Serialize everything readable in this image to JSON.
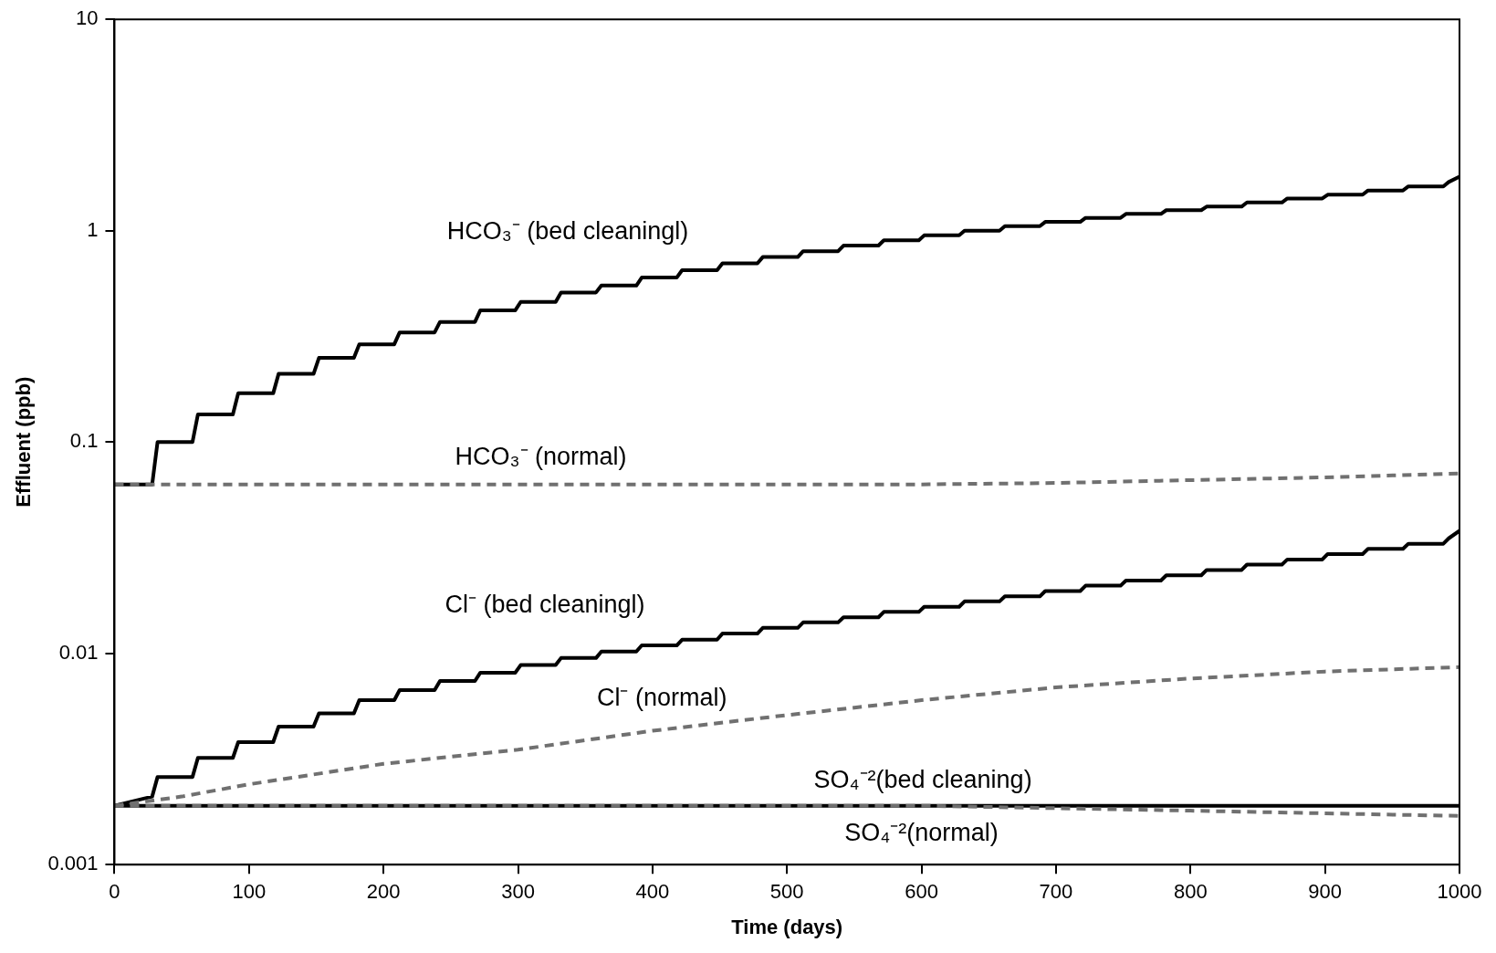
{
  "chart_data": {
    "type": "line",
    "xlabel": "Time (days)",
    "ylabel": "Effluent (ppb)",
    "log": true,
    "xlim": [
      0,
      1000
    ],
    "xticks": [
      0,
      100,
      200,
      300,
      400,
      500,
      600,
      700,
      800,
      900,
      1000
    ],
    "ylim": [
      0.001,
      10
    ],
    "yticks": [
      0.001,
      0.01,
      0.1,
      1,
      10
    ],
    "series": [
      {
        "name": "HCO₃⁻ (bed cleaningl)",
        "color": "#000000",
        "line_style": "solid",
        "x": [
          0,
          28,
          32,
          58,
          62,
          88,
          92,
          118,
          122,
          148,
          152,
          178,
          182,
          208,
          212,
          238,
          242,
          268,
          272,
          298,
          302,
          328,
          332,
          358,
          362,
          388,
          392,
          418,
          422,
          448,
          452,
          478,
          482,
          508,
          512,
          538,
          542,
          568,
          572,
          598,
          602,
          628,
          632,
          658,
          662,
          688,
          692,
          718,
          722,
          748,
          752,
          778,
          782,
          808,
          812,
          838,
          842,
          868,
          872,
          898,
          902,
          928,
          932,
          958,
          962,
          988,
          992,
          1000
        ],
        "values": [
          0.063,
          0.063,
          0.1,
          0.1,
          0.135,
          0.135,
          0.17,
          0.17,
          0.21,
          0.21,
          0.25,
          0.25,
          0.29,
          0.29,
          0.33,
          0.33,
          0.37,
          0.37,
          0.42,
          0.42,
          0.46,
          0.46,
          0.51,
          0.51,
          0.55,
          0.55,
          0.6,
          0.6,
          0.65,
          0.65,
          0.7,
          0.7,
          0.75,
          0.75,
          0.8,
          0.8,
          0.85,
          0.85,
          0.9,
          0.9,
          0.95,
          0.95,
          1,
          1,
          1.05,
          1.05,
          1.1,
          1.1,
          1.15,
          1.15,
          1.2,
          1.2,
          1.25,
          1.25,
          1.3,
          1.3,
          1.36,
          1.36,
          1.42,
          1.42,
          1.48,
          1.48,
          1.55,
          1.55,
          1.62,
          1.62,
          1.7,
          1.8
        ]
      },
      {
        "name": "HCO₃⁻ (normal)",
        "color": "#707070",
        "line_style": "dashed",
        "x": [
          0,
          100,
          200,
          300,
          400,
          500,
          600,
          700,
          800,
          900,
          1000
        ],
        "values": [
          0.063,
          0.063,
          0.063,
          0.063,
          0.063,
          0.063,
          0.063,
          0.064,
          0.066,
          0.068,
          0.071
        ]
      },
      {
        "name": "Cl⁻ (bed cleaningl)",
        "color": "#000000",
        "line_style": "solid",
        "x": [
          0,
          28,
          32,
          58,
          62,
          88,
          92,
          118,
          122,
          148,
          152,
          178,
          182,
          208,
          212,
          238,
          242,
          268,
          272,
          298,
          302,
          328,
          332,
          358,
          362,
          388,
          392,
          418,
          422,
          448,
          452,
          478,
          482,
          508,
          512,
          538,
          542,
          568,
          572,
          598,
          602,
          628,
          632,
          658,
          662,
          688,
          692,
          718,
          722,
          748,
          752,
          778,
          782,
          808,
          812,
          838,
          842,
          868,
          872,
          898,
          902,
          928,
          932,
          958,
          962,
          988,
          992,
          1000
        ],
        "values": [
          0.0019,
          0.0021,
          0.0026,
          0.0026,
          0.0032,
          0.0032,
          0.0038,
          0.0038,
          0.0045,
          0.0045,
          0.0052,
          0.0052,
          0.006,
          0.006,
          0.0067,
          0.0067,
          0.0074,
          0.0074,
          0.0081,
          0.0081,
          0.0088,
          0.0088,
          0.0095,
          0.0095,
          0.0102,
          0.0102,
          0.0109,
          0.0109,
          0.0116,
          0.0116,
          0.0124,
          0.0124,
          0.0132,
          0.0132,
          0.014,
          0.014,
          0.0148,
          0.0148,
          0.0157,
          0.0157,
          0.0166,
          0.0166,
          0.0176,
          0.0176,
          0.0186,
          0.0186,
          0.0197,
          0.0197,
          0.0209,
          0.0209,
          0.0221,
          0.0221,
          0.0234,
          0.0234,
          0.0248,
          0.0248,
          0.0263,
          0.0263,
          0.0278,
          0.0278,
          0.0295,
          0.0295,
          0.0312,
          0.0312,
          0.033,
          0.033,
          0.035,
          0.038
        ]
      },
      {
        "name": "Cl⁻ (normal)",
        "color": "#707070",
        "line_style": "dashed",
        "x": [
          0,
          50,
          100,
          200,
          300,
          400,
          500,
          600,
          700,
          800,
          900,
          1000
        ],
        "values": [
          0.0019,
          0.0021,
          0.0024,
          0.003,
          0.0035,
          0.0043,
          0.0051,
          0.006,
          0.0069,
          0.0076,
          0.0082,
          0.0086
        ]
      },
      {
        "name": "SO₄⁻²(bed cleaning)",
        "color": "#000000",
        "line_style": "solid",
        "x": [
          0,
          500,
          1000
        ],
        "values": [
          0.0019,
          0.0019,
          0.0019
        ]
      },
      {
        "name": "SO₄⁻²(normal)",
        "color": "#707070",
        "line_style": "dashed",
        "x": [
          0,
          600,
          800,
          1000
        ],
        "values": [
          0.0019,
          0.0019,
          0.0018,
          0.0017
        ]
      }
    ]
  }
}
